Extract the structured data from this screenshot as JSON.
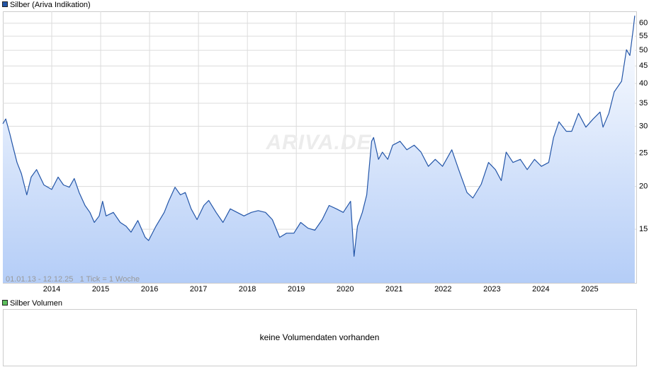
{
  "chart_data": {
    "type": "line",
    "legend": "Silber (Ariva Indikation)",
    "annotation": "01.01.13 - 12.12.25   1 Tick = 1 Woche",
    "watermark": "ARIVA.DE",
    "log_scale": true,
    "grid": true,
    "xlim": [
      2013,
      2025.95
    ],
    "xticks": [
      2014,
      2015,
      2016,
      2017,
      2018,
      2019,
      2020,
      2021,
      2022,
      2023,
      2024,
      2025
    ],
    "ylim": [
      10.45,
      65
    ],
    "yticks": [
      15,
      20,
      25,
      30,
      35,
      40,
      45,
      50,
      55,
      60
    ],
    "x": [
      2013.0,
      2013.06,
      2013.14,
      2013.2,
      2013.29,
      2013.38,
      2013.49,
      2013.58,
      2013.69,
      2013.84,
      2014.0,
      2014.13,
      2014.24,
      2014.36,
      2014.46,
      2014.56,
      2014.68,
      2014.78,
      2014.87,
      2014.97,
      2015.04,
      2015.11,
      2015.26,
      2015.4,
      2015.52,
      2015.62,
      2015.76,
      2015.91,
      2015.98,
      2016.13,
      2016.3,
      2016.39,
      2016.52,
      2016.63,
      2016.73,
      2016.85,
      2016.97,
      2017.11,
      2017.21,
      2017.36,
      2017.5,
      2017.65,
      2017.79,
      2017.93,
      2018.08,
      2018.22,
      2018.37,
      2018.51,
      2018.66,
      2018.8,
      2018.95,
      2019.09,
      2019.24,
      2019.38,
      2019.53,
      2019.67,
      2019.82,
      2019.96,
      2020.11,
      2020.18,
      2020.25,
      2020.35,
      2020.44,
      2020.54,
      2020.58,
      2020.68,
      2020.76,
      2020.87,
      2020.97,
      2021.12,
      2021.26,
      2021.41,
      2021.55,
      2021.7,
      2021.84,
      2021.99,
      2022.18,
      2022.32,
      2022.49,
      2022.61,
      2022.78,
      2022.93,
      2023.07,
      2023.19,
      2023.29,
      2023.43,
      2023.58,
      2023.72,
      2023.87,
      2024.01,
      2024.16,
      2024.26,
      2024.37,
      2024.52,
      2024.63,
      2024.77,
      2024.92,
      2025.07,
      2025.21,
      2025.27,
      2025.39,
      2025.5,
      2025.65,
      2025.75,
      2025.82,
      2025.89,
      2025.92
    ],
    "series": [
      {
        "name": "Silber (Ariva Indikation)",
        "color": "#2456a8",
        "values": [
          30.5,
          31.5,
          28.6,
          26.4,
          23.5,
          21.8,
          18.9,
          21.3,
          22.4,
          20.2,
          19.6,
          21.3,
          20.2,
          19.9,
          21.1,
          19.2,
          17.6,
          16.8,
          15.7,
          16.4,
          18.1,
          16.4,
          16.8,
          15.7,
          15.3,
          14.7,
          15.9,
          14.2,
          13.9,
          15.3,
          16.8,
          18.1,
          19.9,
          18.9,
          19.2,
          17.2,
          16.0,
          17.6,
          18.2,
          16.8,
          15.7,
          17.2,
          16.8,
          16.4,
          16.8,
          17.0,
          16.8,
          16.0,
          14.2,
          14.6,
          14.6,
          15.7,
          15.1,
          14.9,
          16.0,
          17.6,
          17.2,
          16.8,
          18.1,
          12.5,
          15.3,
          16.8,
          18.9,
          27.1,
          27.8,
          24.0,
          25.2,
          24.0,
          26.4,
          27.1,
          25.6,
          26.4,
          25.2,
          22.9,
          24.0,
          22.9,
          25.6,
          22.4,
          19.2,
          18.5,
          20.3,
          23.5,
          22.4,
          20.8,
          25.2,
          23.5,
          24.0,
          22.4,
          24.0,
          22.9,
          23.5,
          27.8,
          30.9,
          29.0,
          29.0,
          32.7,
          29.8,
          31.5,
          33.0,
          29.8,
          32.7,
          37.8,
          40.6,
          50.2,
          48.3,
          58.0,
          63.1
        ]
      }
    ]
  },
  "volume_panel": {
    "legend": "Silber Volumen",
    "message": "keine Volumendaten vorhanden"
  }
}
